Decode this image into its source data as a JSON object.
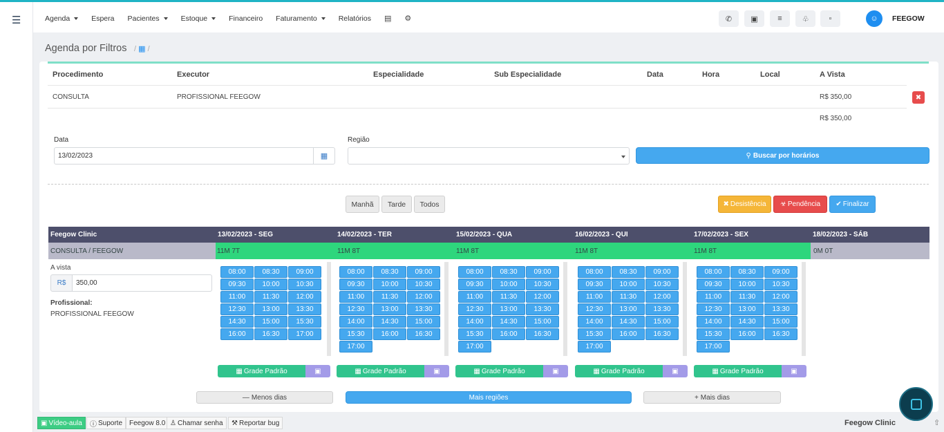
{
  "colors": {
    "accent": "#45a8ef",
    "green": "#2ed67d",
    "header_dark": "#4d4f6b",
    "danger": "#e74c4c",
    "warning": "#f5b638"
  },
  "nav": {
    "menu_icon": "hamburger-icon",
    "items": [
      "Agenda",
      "Espera",
      "Pacientes",
      "Estoque",
      "Financeiro",
      "Faturamento",
      "Relatórios"
    ],
    "user_name": "FEEGOW"
  },
  "page": {
    "title": "Agenda por Filtros"
  },
  "table": {
    "headers": [
      "Procedimento",
      "Executor",
      "Especialidade",
      "Sub Especialidade",
      "Data",
      "Hora",
      "Local",
      "A Vista"
    ],
    "row": {
      "procedimento": "CONSULTA",
      "executor": "PROFISSIONAL FEEGOW",
      "valor": "R$ 350,00"
    },
    "total": "R$ 350,00"
  },
  "filters": {
    "data_label": "Data",
    "data_value": "13/02/2023",
    "regiao_label": "Região",
    "regiao_value": "",
    "search_button": "Buscar por horários"
  },
  "periods": [
    "Manhã",
    "Tarde",
    "Todos"
  ],
  "actions": {
    "desistencia": "Desistência",
    "pendencia": "Pendência",
    "finalizar": "Finalizar"
  },
  "grid": {
    "clinic": "Feegow Clinic",
    "subtitle": "CONSULTA / FEEGOW",
    "avista_label": "A vista",
    "currency": "R$",
    "price": "350,00",
    "prof_label": "Profissional:",
    "prof_name": "PROFISSIONAL FEEGOW",
    "days": [
      {
        "label": "13/02/2023 - SEG",
        "count": "11M 7T",
        "slots": [
          "08:00",
          "08:30",
          "09:00",
          "09:30",
          "10:00",
          "10:30",
          "11:00",
          "11:30",
          "12:00",
          "12:30",
          "13:00",
          "13:30",
          "14:30",
          "15:00",
          "15:30",
          "16:00",
          "16:30",
          "17:00"
        ]
      },
      {
        "label": "14/02/2023 - TER",
        "count": "11M 8T",
        "slots": [
          "08:00",
          "08:30",
          "09:00",
          "09:30",
          "10:00",
          "10:30",
          "11:00",
          "11:30",
          "12:00",
          "12:30",
          "13:00",
          "13:30",
          "14:00",
          "14:30",
          "15:00",
          "15:30",
          "16:00",
          "16:30",
          "17:00"
        ]
      },
      {
        "label": "15/02/2023 - QUA",
        "count": "11M 8T",
        "slots": [
          "08:00",
          "08:30",
          "09:00",
          "09:30",
          "10:00",
          "10:30",
          "11:00",
          "11:30",
          "12:00",
          "12:30",
          "13:00",
          "13:30",
          "14:00",
          "14:30",
          "15:00",
          "15:30",
          "16:00",
          "16:30",
          "17:00"
        ]
      },
      {
        "label": "16/02/2023 - QUI",
        "count": "11M 8T",
        "slots": [
          "08:00",
          "08:30",
          "09:00",
          "09:30",
          "10:00",
          "10:30",
          "11:00",
          "11:30",
          "12:00",
          "12:30",
          "13:00",
          "13:30",
          "14:00",
          "14:30",
          "15:00",
          "15:30",
          "16:00",
          "16:30",
          "17:00"
        ]
      },
      {
        "label": "17/02/2023 - SEX",
        "count": "11M 8T",
        "slots": [
          "08:00",
          "08:30",
          "09:00",
          "09:30",
          "10:00",
          "10:30",
          "11:00",
          "11:30",
          "12:00",
          "12:30",
          "13:00",
          "13:30",
          "14:00",
          "14:30",
          "15:00",
          "15:30",
          "16:00",
          "16:30",
          "17:00"
        ]
      },
      {
        "label": "18/02/2023 - SÁB",
        "count": "0M 0T",
        "slots": []
      }
    ],
    "grade_label": "Grade Padrão"
  },
  "footer_buttons": {
    "menos": "Menos dias",
    "mais_regioes": "Mais regiões",
    "mais": "Mais dias"
  },
  "statusbar": {
    "video": "Vídeo-aula",
    "suporte": "Suporte",
    "version": "Feegow 8.0",
    "chamar": "Chamar senha",
    "bug": "Reportar bug",
    "clinic": "Feegow Clinic"
  }
}
